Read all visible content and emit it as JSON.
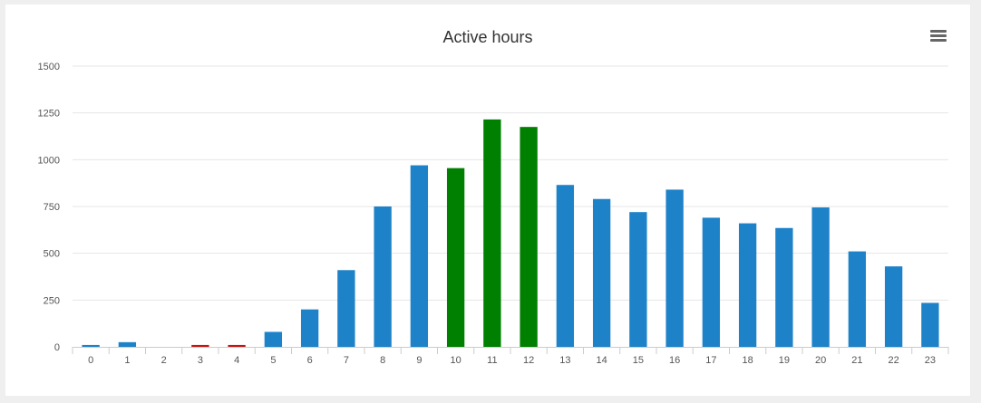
{
  "chart_data": {
    "type": "bar",
    "title": "Active hours",
    "xlabel": "",
    "ylabel": "",
    "categories": [
      "0",
      "1",
      "2",
      "3",
      "4",
      "5",
      "6",
      "7",
      "8",
      "9",
      "10",
      "11",
      "12",
      "13",
      "14",
      "15",
      "16",
      "17",
      "18",
      "19",
      "20",
      "21",
      "22",
      "23"
    ],
    "values": [
      10,
      25,
      0,
      10,
      10,
      80,
      200,
      410,
      750,
      970,
      955,
      1215,
      1175,
      865,
      790,
      720,
      840,
      690,
      660,
      635,
      745,
      510,
      430,
      235
    ],
    "bar_colors": [
      "#1e82c8",
      "#1e82c8",
      "#1e82c8",
      "#cc1111",
      "#cc1111",
      "#1e82c8",
      "#1e82c8",
      "#1e82c8",
      "#1e82c8",
      "#1e82c8",
      "#008000",
      "#008000",
      "#008000",
      "#1e82c8",
      "#1e82c8",
      "#1e82c8",
      "#1e82c8",
      "#1e82c8",
      "#1e82c8",
      "#1e82c8",
      "#1e82c8",
      "#1e82c8",
      "#1e82c8",
      "#1e82c8"
    ],
    "yticks": [
      0,
      250,
      500,
      750,
      1000,
      1250,
      1500
    ],
    "ylim": [
      0,
      1500
    ],
    "grid": true,
    "legend": "none"
  },
  "menu": {
    "icon": "hamburger-menu-icon"
  }
}
